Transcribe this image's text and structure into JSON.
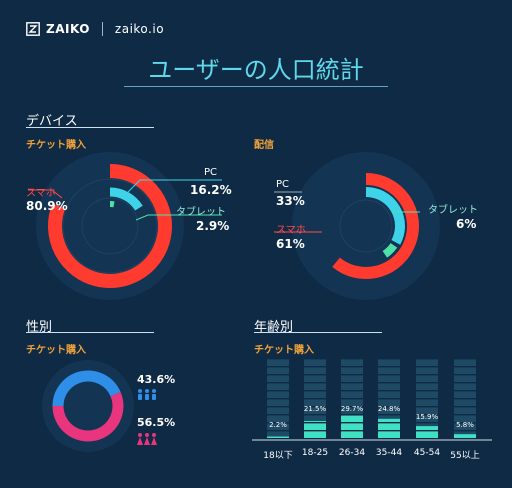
{
  "brand": {
    "logo": "ZAIKO",
    "site": "zaiko.io"
  },
  "title": "ユーザーの人口統計",
  "sections": {
    "device": "デバイス",
    "gender": "性別",
    "age": "年齢別"
  },
  "chart_data": [
    {
      "type": "pie",
      "name": "デバイス",
      "subtitle": "チケット購入",
      "slices": [
        {
          "label": "スマホ",
          "value": 80.9,
          "display": "80.9%",
          "color": "#ff3b30"
        },
        {
          "label": "PC",
          "value": 16.2,
          "display": "16.2%",
          "color": "#3fd3ea"
        },
        {
          "label": "タブレット",
          "value": 2.9,
          "display": "2.9%",
          "color": "#4fe0a8"
        }
      ]
    },
    {
      "type": "pie",
      "subtitle": "配信",
      "slices": [
        {
          "label": "スマホ",
          "value": 61,
          "display": "61%",
          "color": "#ff3b30"
        },
        {
          "label": "PC",
          "value": 33,
          "display": "33%",
          "color": "#3fd3ea"
        },
        {
          "label": "タブレット",
          "value": 6,
          "display": "6%",
          "color": "#4fe0a8"
        }
      ]
    },
    {
      "type": "pie",
      "name": "性別",
      "subtitle": "チケット購入",
      "slices": [
        {
          "label": "",
          "value": 43.6,
          "display": "43.6%",
          "color": "#2f8fe8"
        },
        {
          "label": "",
          "value": 56.5,
          "display": "56.5%",
          "color": "#e8357e"
        }
      ]
    },
    {
      "type": "bar",
      "name": "年齢別",
      "subtitle": "チケット購入",
      "categories": [
        "18以下",
        "18-25",
        "26-34",
        "35-44",
        "45-54",
        "55以上"
      ],
      "values": [
        2.2,
        21.5,
        29.7,
        24.8,
        15.9,
        5.8
      ],
      "value_labels": [
        "2.2%",
        "21.5%",
        "29.7%",
        "24.8%",
        "15.9%",
        "5.8%"
      ],
      "ylim": [
        0,
        100
      ],
      "color": "#3fe0c4"
    }
  ],
  "colors": {
    "background": "#0f2a44",
    "accent_title": "#5fd8ec",
    "subtitle": "#f0a13a"
  }
}
